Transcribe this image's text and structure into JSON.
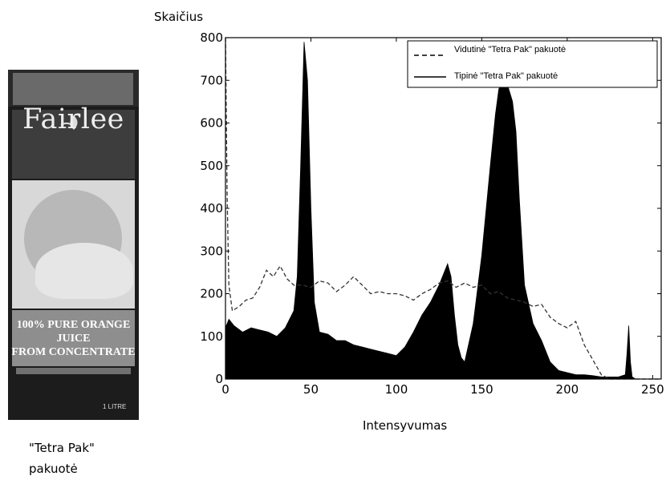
{
  "image_caption_lines": [
    "\"Tetra Pak\"",
    "pakuotė"
  ],
  "carton": {
    "brand": "Fairlee",
    "juice_text_lines": [
      "100% PURE ORANGE JUICE",
      "FROM CONCENTRATE"
    ],
    "volume": "1 LITRE"
  },
  "chart_data": {
    "type": "area",
    "xlabel": "Intensyvumas",
    "ylabel": "Skaičius",
    "xlim": [
      0,
      255
    ],
    "ylim": [
      0,
      800
    ],
    "xticks": [
      0,
      50,
      100,
      150,
      200,
      250
    ],
    "yticks": [
      0,
      100,
      200,
      300,
      400,
      500,
      600,
      700,
      800
    ],
    "grid": false,
    "legend_position": "top-right",
    "series": [
      {
        "name": "Vidutinė \"Tetra Pak\" pakuotė",
        "style": "dashed",
        "x": [
          0,
          1,
          2,
          4,
          8,
          12,
          16,
          20,
          24,
          28,
          32,
          36,
          40,
          45,
          50,
          55,
          60,
          65,
          70,
          75,
          80,
          85,
          90,
          95,
          100,
          105,
          110,
          115,
          120,
          125,
          130,
          135,
          140,
          145,
          150,
          155,
          160,
          165,
          170,
          175,
          180,
          185,
          190,
          195,
          200,
          205,
          210,
          215,
          220,
          225,
          230,
          235,
          240,
          245,
          250,
          255
        ],
        "values": [
          800,
          420,
          220,
          160,
          170,
          185,
          190,
          215,
          255,
          240,
          265,
          235,
          220,
          220,
          215,
          230,
          225,
          205,
          220,
          240,
          220,
          200,
          205,
          200,
          200,
          195,
          185,
          200,
          210,
          225,
          230,
          215,
          225,
          215,
          220,
          200,
          205,
          190,
          185,
          180,
          170,
          175,
          145,
          130,
          120,
          135,
          80,
          45,
          10,
          0,
          0,
          0,
          0,
          0,
          0,
          0
        ]
      },
      {
        "name": "Tipinė \"Tetra Pak\" pakuotė",
        "style": "filled",
        "x": [
          0,
          2,
          5,
          10,
          15,
          20,
          25,
          30,
          35,
          40,
          42,
          44,
          46,
          48,
          50,
          52,
          55,
          60,
          65,
          70,
          75,
          80,
          85,
          90,
          95,
          100,
          105,
          110,
          115,
          120,
          125,
          128,
          130,
          132,
          134,
          136,
          138,
          140,
          145,
          150,
          155,
          158,
          160,
          163,
          165,
          168,
          170,
          172,
          175,
          180,
          185,
          190,
          195,
          200,
          205,
          210,
          215,
          220,
          225,
          230,
          234,
          235,
          236,
          237,
          238,
          240,
          245,
          250,
          255
        ],
        "values": [
          120,
          140,
          125,
          110,
          120,
          115,
          110,
          100,
          120,
          160,
          240,
          500,
          790,
          700,
          400,
          180,
          110,
          105,
          90,
          90,
          80,
          75,
          70,
          65,
          60,
          55,
          75,
          110,
          150,
          180,
          220,
          250,
          270,
          240,
          150,
          80,
          50,
          40,
          130,
          290,
          500,
          620,
          680,
          700,
          690,
          650,
          580,
          420,
          220,
          130,
          90,
          40,
          20,
          15,
          10,
          10,
          8,
          5,
          5,
          5,
          10,
          60,
          125,
          40,
          5,
          0,
          0,
          0,
          0
        ]
      }
    ]
  }
}
